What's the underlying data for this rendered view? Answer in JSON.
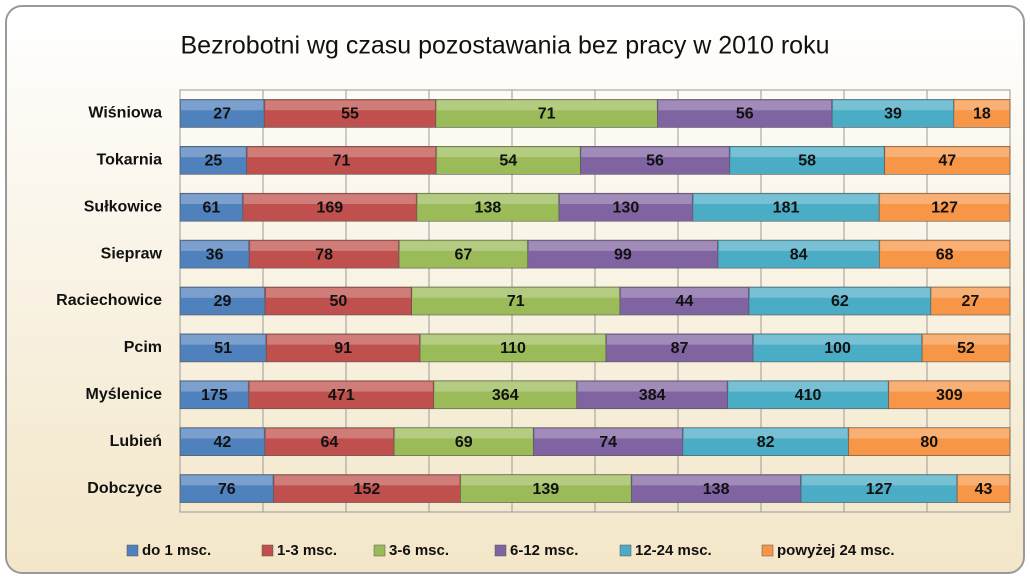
{
  "chart_data": {
    "type": "stacked_bar_100",
    "title": "Bezrobotni wg czasu pozostawania bez pracy w 2010 roku",
    "categories": [
      "Wiśniowa",
      "Tokarnia",
      "Sułkowice",
      "Siepraw",
      "Raciechowice",
      "Pcim",
      "Myślenice",
      "Lubień",
      "Dobczyce"
    ],
    "series": [
      {
        "name": "do 1 msc.",
        "color": "#4f81bd",
        "values": [
          27,
          25,
          61,
          36,
          29,
          51,
          175,
          42,
          76
        ]
      },
      {
        "name": "1-3 msc.",
        "color": "#c0504d",
        "values": [
          55,
          71,
          169,
          78,
          50,
          91,
          471,
          64,
          152
        ]
      },
      {
        "name": "3-6 msc.",
        "color": "#9bbb59",
        "values": [
          71,
          54,
          138,
          67,
          71,
          110,
          364,
          69,
          139
        ]
      },
      {
        "name": "6-12 msc.",
        "color": "#8064a2",
        "values": [
          56,
          56,
          130,
          99,
          44,
          87,
          384,
          74,
          138
        ]
      },
      {
        "name": "12-24 msc.",
        "color": "#4bacc6",
        "values": [
          39,
          58,
          181,
          84,
          62,
          100,
          410,
          82,
          127
        ]
      },
      {
        "name": "powyżej 24 msc.",
        "color": "#f79646",
        "values": [
          18,
          47,
          127,
          68,
          27,
          52,
          309,
          80,
          43
        ]
      }
    ],
    "xlim": [
      0,
      100
    ],
    "xticks": [
      0,
      10,
      20,
      30,
      40,
      50,
      60,
      70,
      80,
      90,
      100
    ],
    "grid": true,
    "legend": "bottom"
  }
}
